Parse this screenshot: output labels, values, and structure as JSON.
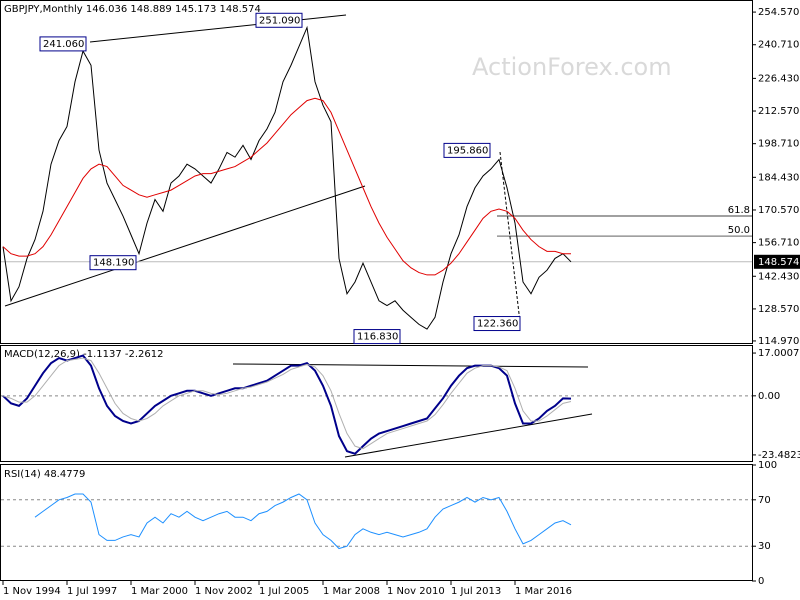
{
  "chart_data": [
    {
      "type": "line",
      "title": "GBPJPY,Monthly  146.036 148.889 145.173 148.574",
      "watermark": "ActionForex.com",
      "categories": [
        "1 Nov 1994",
        null,
        null,
        null,
        null,
        null,
        null,
        null,
        "1 Jul 1997",
        null,
        null,
        null,
        null,
        null,
        null,
        null,
        "1 Mar 2000",
        null,
        null,
        null,
        null,
        null,
        null,
        null,
        "1 Nov 2002",
        null,
        null,
        null,
        null,
        null,
        null,
        null,
        "1 Jul 2005",
        null,
        null,
        null,
        null,
        null,
        null,
        null,
        "1 Mar 2008",
        null,
        null,
        null,
        null,
        null,
        null,
        null,
        "1 Nov 2010",
        null,
        null,
        null,
        null,
        null,
        null,
        null,
        "1 Jul 2013",
        null,
        null,
        null,
        null,
        null,
        null,
        null,
        "1 Mar 2016",
        null,
        null,
        null,
        null,
        null,
        null,
        null
      ],
      "series": [
        {
          "name": "GBPJPY",
          "color": "#000000",
          "values": [
            155,
            132,
            138,
            150,
            158,
            170,
            190,
            200,
            206,
            225,
            238,
            232,
            196,
            182,
            175,
            168,
            160,
            152,
            165,
            175,
            170,
            182,
            185,
            190,
            188,
            185,
            182,
            188,
            195,
            193,
            198,
            192,
            200,
            205,
            212,
            225,
            232,
            240,
            248,
            225,
            215,
            208,
            150,
            135,
            140,
            148,
            140,
            132,
            130,
            132,
            128,
            125,
            122,
            120,
            125,
            140,
            152,
            160,
            172,
            180,
            185,
            188,
            192,
            180,
            165,
            140,
            135,
            142,
            145,
            150,
            152,
            148.574
          ]
        },
        {
          "name": "MA",
          "color": "#e00000",
          "values": [
            155,
            152,
            151,
            151,
            152,
            155,
            160,
            166,
            172,
            178,
            184,
            188,
            190,
            189,
            185,
            181,
            179,
            177,
            176,
            177,
            178,
            179,
            181,
            183,
            185,
            186,
            186,
            187,
            188,
            189,
            191,
            193,
            196,
            199,
            203,
            207,
            211,
            214,
            217,
            218,
            217,
            212,
            204,
            196,
            188,
            180,
            172,
            165,
            159,
            154,
            149,
            146,
            144,
            143,
            143,
            145,
            148,
            152,
            157,
            162,
            167,
            170,
            171,
            170,
            167,
            162,
            158,
            155,
            153,
            153,
            152,
            152
          ]
        }
      ],
      "last_value": 148.574,
      "ylim": [
        114.1,
        259.7
      ],
      "yticks": [
        {
          "value": 254.57,
          "label": "254.570"
        },
        {
          "value": 240.71,
          "label": "240.710"
        },
        {
          "value": 226.43,
          "label": "226.430"
        },
        {
          "value": 212.57,
          "label": "212.570"
        },
        {
          "value": 198.71,
          "label": "198.710"
        },
        {
          "value": 184.43,
          "label": "184.430"
        },
        {
          "value": 170.57,
          "label": "170.570"
        },
        {
          "value": 156.71,
          "label": "156.710"
        },
        {
          "value": 142.43,
          "label": "142.430"
        },
        {
          "value": 128.57,
          "label": "128.570"
        },
        {
          "value": 114.97,
          "label": "114.970"
        }
      ],
      "price_labels": [
        {
          "value": 241.06,
          "label": "241.060"
        },
        {
          "value": 251.09,
          "label": "251.090"
        },
        {
          "value": 148.19,
          "label": "148.190"
        },
        {
          "value": 116.83,
          "label": "116.830"
        },
        {
          "value": 195.86,
          "label": "195.860"
        },
        {
          "value": 122.36,
          "label": "122.360"
        }
      ],
      "fib_levels": [
        {
          "level": "61.8",
          "price": 168.0
        },
        {
          "level": "50.0",
          "price": 159.5
        }
      ]
    },
    {
      "type": "line",
      "title": "MACD(12,26,9) -1.1137 -2.2612",
      "series": [
        {
          "name": "MACD",
          "color": "#00008b",
          "values": [
            0,
            -3,
            -4,
            -1,
            4,
            9,
            13,
            15,
            14,
            15,
            16,
            12,
            3,
            -4,
            -8,
            -10,
            -11,
            -10,
            -7,
            -4,
            -2,
            0,
            1,
            2,
            2,
            1,
            0,
            1,
            2,
            3,
            3,
            4,
            5,
            6,
            8,
            10,
            12,
            12,
            13,
            10,
            4,
            -4,
            -16,
            -22,
            -23,
            -20,
            -17,
            -15,
            -14,
            -13,
            -12,
            -11,
            -10,
            -9,
            -5,
            -1,
            4,
            8,
            11,
            12,
            12,
            12,
            11,
            8,
            -3,
            -11,
            -11,
            -9,
            -6,
            -4,
            -1,
            -1.1137
          ]
        },
        {
          "name": "Signal",
          "color": "#b0b0b0",
          "values": [
            0,
            -1,
            -2.5,
            -2.5,
            0,
            4,
            8,
            12,
            14,
            14.5,
            15,
            14,
            9,
            3,
            -3,
            -7,
            -9,
            -10,
            -9,
            -7,
            -4,
            -2,
            0,
            1,
            2,
            2,
            1,
            0.5,
            1,
            2,
            3,
            3.5,
            4.5,
            5.5,
            7,
            8.5,
            10.5,
            11.5,
            12.5,
            11.5,
            8,
            2,
            -7,
            -15,
            -20,
            -21,
            -19,
            -17,
            -15,
            -14,
            -13,
            -12,
            -11,
            -10,
            -7.5,
            -3.5,
            1,
            5,
            9,
            11,
            12,
            12,
            11.5,
            10,
            3,
            -6,
            -10,
            -10,
            -8,
            -5.5,
            -3,
            -2.2612
          ]
        }
      ],
      "ylim": [
        -25.9,
        20.2
      ],
      "yticks": [
        17.0007,
        {
          "value": 0,
          "label": "0.00"
        },
        -23.4823
      ]
    },
    {
      "type": "line",
      "title": "RSI(14) 48.4779",
      "series": [
        {
          "name": "RSI",
          "color": "#1e90ff",
          "values": [
            null,
            null,
            null,
            null,
            55,
            60,
            65,
            70,
            72,
            75,
            75,
            68,
            40,
            35,
            35,
            38,
            40,
            38,
            50,
            55,
            50,
            58,
            55,
            60,
            55,
            52,
            55,
            58,
            60,
            55,
            55,
            52,
            58,
            60,
            65,
            68,
            72,
            75,
            70,
            50,
            40,
            35,
            28,
            30,
            40,
            45,
            42,
            40,
            42,
            40,
            38,
            40,
            42,
            45,
            55,
            62,
            65,
            68,
            72,
            68,
            72,
            70,
            72,
            60,
            45,
            32,
            35,
            40,
            45,
            50,
            52,
            48.4779
          ]
        }
      ],
      "ylim": [
        0,
        100
      ],
      "yticks": [
        100,
        70,
        30,
        0
      ]
    }
  ]
}
